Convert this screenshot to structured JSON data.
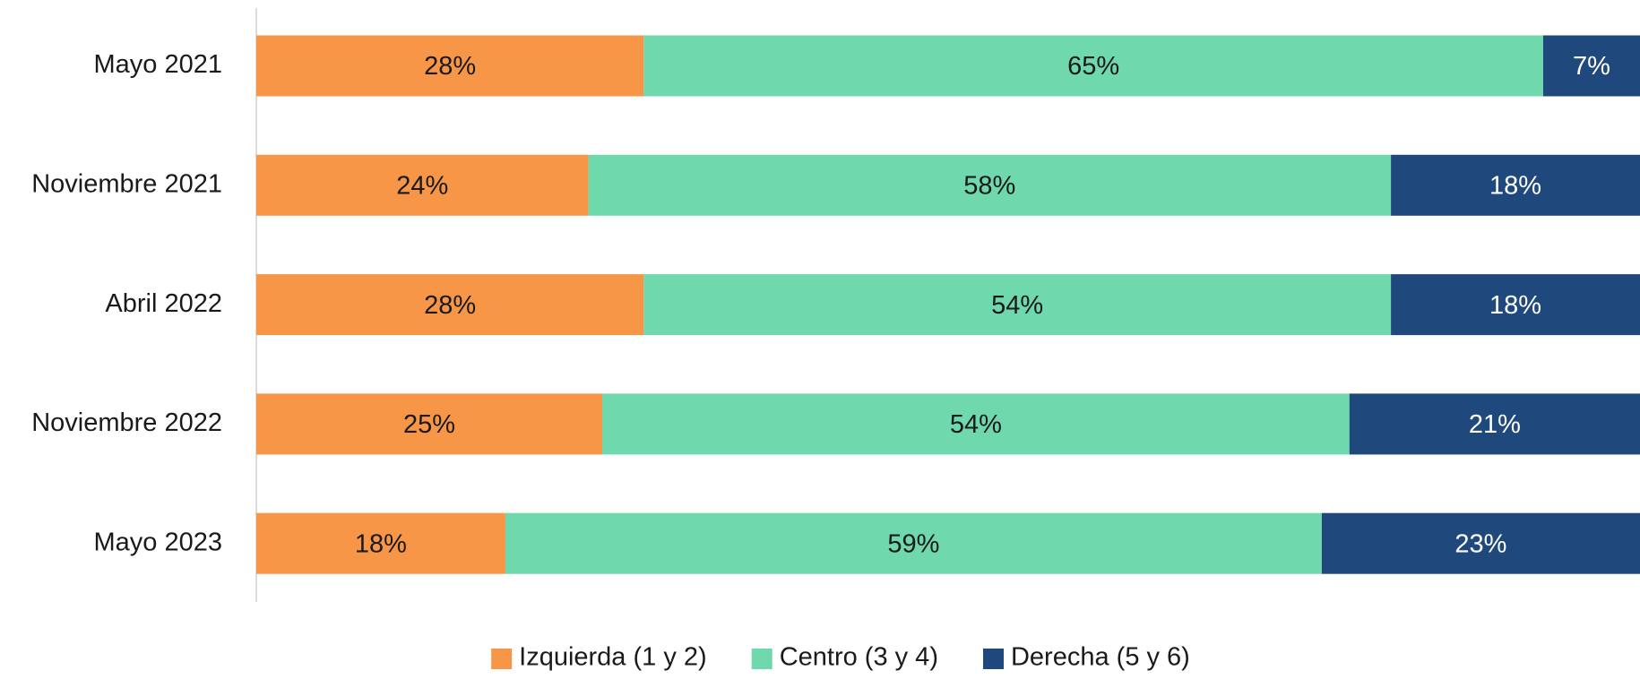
{
  "chart_data": {
    "type": "stacked_bar_horizontal",
    "categories": [
      "Mayo 2021",
      "Noviembre 2021",
      "Abril 2022",
      "Noviembre 2022",
      "Mayo 2023"
    ],
    "series": [
      {
        "name": "Izquierda (1 y 2)",
        "color": "#f79646",
        "label_color": "#1a1a1a",
        "values": [
          28,
          24,
          28,
          25,
          18
        ],
        "value_labels": [
          "28%",
          "24%",
          "28%",
          "25%",
          "18%"
        ]
      },
      {
        "name": "Centro (3 y 4)",
        "color": "#6fd8ad",
        "label_color": "#1a1a1a",
        "values": [
          65,
          58,
          54,
          54,
          59
        ],
        "value_labels": [
          "65%",
          "58%",
          "54%",
          "54%",
          "59%"
        ]
      },
      {
        "name": "Derecha (5 y 6)",
        "color": "#1f497d",
        "label_color": "#ffffff",
        "values": [
          7,
          18,
          18,
          21,
          23
        ],
        "value_labels": [
          "7%",
          "18%",
          "18%",
          "21%",
          "23%"
        ]
      }
    ],
    "xlim": [
      0,
      100
    ],
    "legend": "bottom"
  }
}
